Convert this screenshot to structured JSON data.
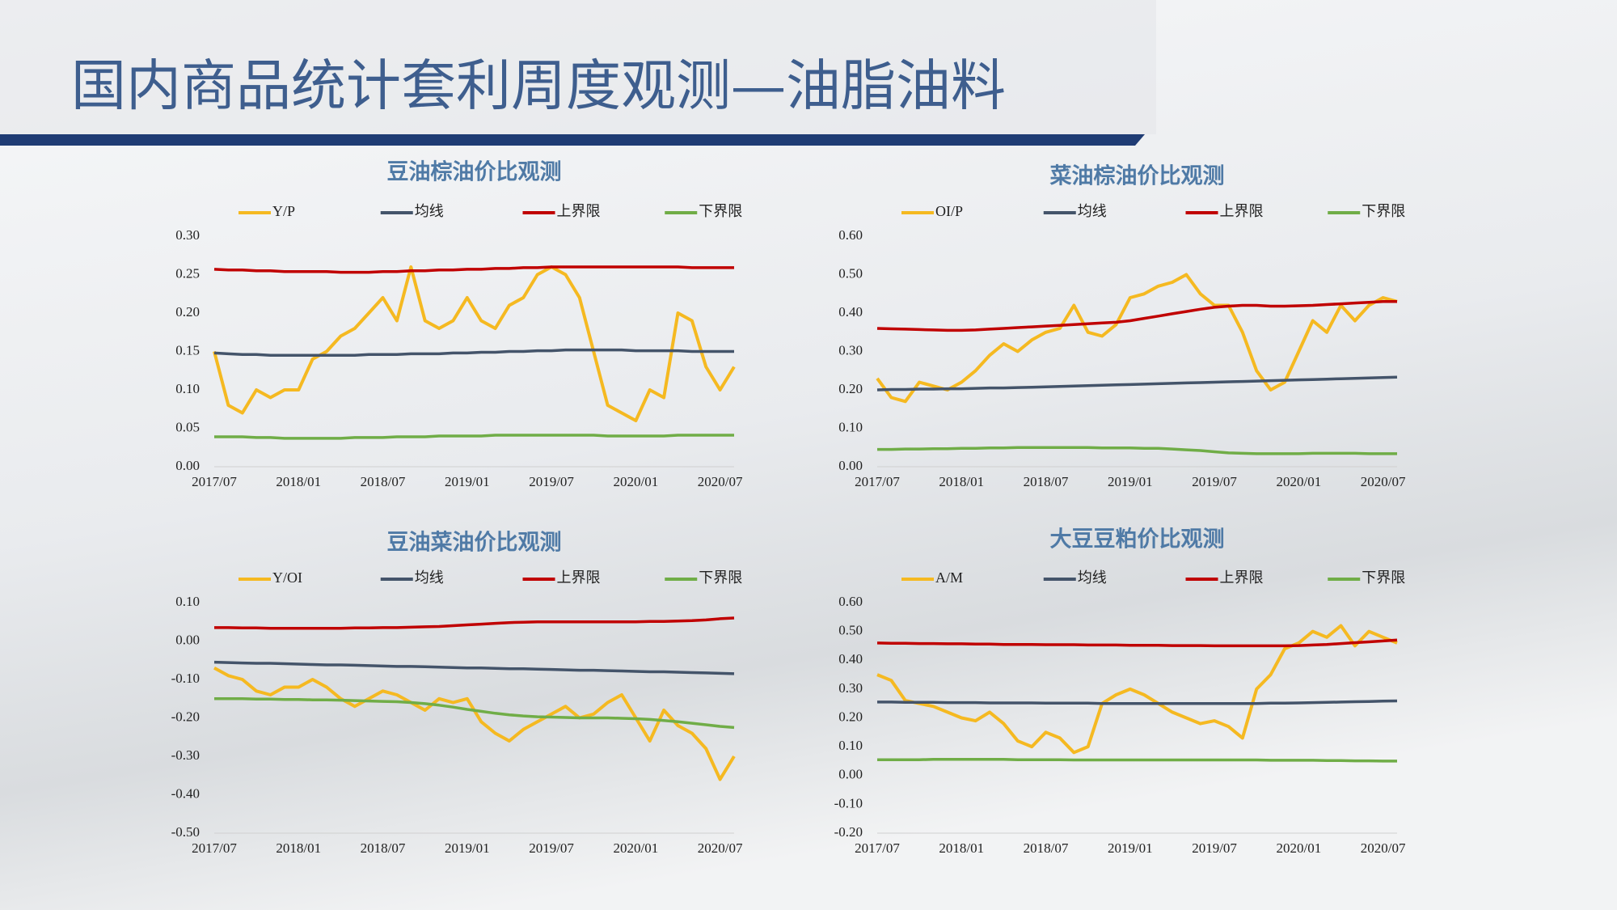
{
  "header": {
    "title": "国内商品统计套利周度观测—油脂油料"
  },
  "chart_data": [
    {
      "type": "line",
      "title": "豆油棕油价比观测",
      "categories": [
        "2017/07",
        null,
        null,
        null,
        null,
        null,
        "2018/01",
        null,
        null,
        null,
        null,
        null,
        "2018/07",
        null,
        null,
        null,
        null,
        null,
        "2019/01",
        null,
        null,
        null,
        null,
        null,
        "2019/07",
        null,
        null,
        null,
        null,
        null,
        "2020/01",
        null,
        null,
        null,
        null,
        null,
        "2020/07",
        null
      ],
      "ylim": [
        0,
        0.3
      ],
      "yticks": [
        {
          "value": 0,
          "label": "0.00"
        },
        {
          "value": 0.05,
          "label": "0.05"
        },
        {
          "value": 0.1,
          "label": "0.10"
        },
        {
          "value": 0.15,
          "label": "0.15"
        },
        {
          "value": 0.2,
          "label": "0.20"
        },
        {
          "value": 0.25,
          "label": "0.25"
        },
        {
          "value": 0.3,
          "label": "0.30"
        }
      ],
      "grid": false,
      "series": [
        {
          "name": "Y/P",
          "color": "#f5b921",
          "values": [
            0.15,
            0.08,
            0.07,
            0.1,
            0.09,
            0.1,
            0.1,
            0.14,
            0.15,
            0.17,
            0.18,
            0.2,
            0.22,
            0.19,
            0.26,
            0.19,
            0.18,
            0.19,
            0.22,
            0.19,
            0.18,
            0.21,
            0.22,
            0.25,
            0.26,
            0.25,
            0.22,
            0.15,
            0.08,
            0.07,
            0.06,
            0.1,
            0.09,
            0.2,
            0.19,
            0.13,
            0.1,
            0.13
          ]
        },
        {
          "name": "均线",
          "color": "#44546a",
          "values": [
            0.148,
            0.147,
            0.146,
            0.146,
            0.145,
            0.145,
            0.145,
            0.145,
            0.145,
            0.145,
            0.145,
            0.146,
            0.146,
            0.146,
            0.147,
            0.147,
            0.147,
            0.148,
            0.148,
            0.149,
            0.149,
            0.15,
            0.15,
            0.151,
            0.151,
            0.152,
            0.152,
            0.152,
            0.152,
            0.152,
            0.151,
            0.151,
            0.151,
            0.151,
            0.15,
            0.15,
            0.15,
            0.15
          ]
        },
        {
          "name": "上界限",
          "color": "#c00000",
          "values": [
            0.257,
            0.256,
            0.256,
            0.255,
            0.255,
            0.254,
            0.254,
            0.254,
            0.254,
            0.253,
            0.253,
            0.253,
            0.254,
            0.254,
            0.255,
            0.255,
            0.256,
            0.256,
            0.257,
            0.257,
            0.258,
            0.258,
            0.259,
            0.259,
            0.26,
            0.26,
            0.26,
            0.26,
            0.26,
            0.26,
            0.26,
            0.26,
            0.26,
            0.26,
            0.259,
            0.259,
            0.259,
            0.259
          ]
        },
        {
          "name": "下界限",
          "color": "#70ad47",
          "values": [
            0.039,
            0.039,
            0.039,
            0.038,
            0.038,
            0.037,
            0.037,
            0.037,
            0.037,
            0.037,
            0.038,
            0.038,
            0.038,
            0.039,
            0.039,
            0.039,
            0.04,
            0.04,
            0.04,
            0.04,
            0.041,
            0.041,
            0.041,
            0.041,
            0.041,
            0.041,
            0.041,
            0.041,
            0.04,
            0.04,
            0.04,
            0.04,
            0.04,
            0.041,
            0.041,
            0.041,
            0.041,
            0.041
          ]
        }
      ]
    },
    {
      "type": "line",
      "title": "菜油棕油价比观测",
      "categories": [
        "2017/07",
        null,
        null,
        null,
        null,
        null,
        "2018/01",
        null,
        null,
        null,
        null,
        null,
        "2018/07",
        null,
        null,
        null,
        null,
        null,
        "2019/01",
        null,
        null,
        null,
        null,
        null,
        "2019/07",
        null,
        null,
        null,
        null,
        null,
        "2020/01",
        null,
        null,
        null,
        null,
        null,
        "2020/07",
        null
      ],
      "ylim": [
        0,
        0.6
      ],
      "yticks": [
        {
          "value": 0,
          "label": "0.00"
        },
        {
          "value": 0.1,
          "label": "0.10"
        },
        {
          "value": 0.2,
          "label": "0.20"
        },
        {
          "value": 0.3,
          "label": "0.30"
        },
        {
          "value": 0.4,
          "label": "0.40"
        },
        {
          "value": 0.5,
          "label": "0.50"
        },
        {
          "value": 0.6,
          "label": "0.60"
        }
      ],
      "grid": false,
      "series": [
        {
          "name": "OI/P",
          "color": "#f5b921",
          "values": [
            0.23,
            0.18,
            0.17,
            0.22,
            0.21,
            0.2,
            0.22,
            0.25,
            0.29,
            0.32,
            0.3,
            0.33,
            0.35,
            0.36,
            0.42,
            0.35,
            0.34,
            0.37,
            0.44,
            0.45,
            0.47,
            0.48,
            0.5,
            0.45,
            0.42,
            0.42,
            0.35,
            0.25,
            0.2,
            0.22,
            0.3,
            0.38,
            0.35,
            0.42,
            0.38,
            0.42,
            0.44,
            0.43
          ]
        },
        {
          "name": "均线",
          "color": "#44546a",
          "values": [
            0.2,
            0.201,
            0.201,
            0.202,
            0.202,
            0.203,
            0.203,
            0.204,
            0.205,
            0.205,
            0.206,
            0.207,
            0.208,
            0.209,
            0.21,
            0.211,
            0.212,
            0.213,
            0.214,
            0.215,
            0.216,
            0.217,
            0.218,
            0.219,
            0.22,
            0.221,
            0.222,
            0.223,
            0.224,
            0.225,
            0.226,
            0.227,
            0.228,
            0.229,
            0.23,
            0.231,
            0.232,
            0.233
          ]
        },
        {
          "name": "上界限",
          "color": "#c00000",
          "values": [
            0.36,
            0.359,
            0.358,
            0.357,
            0.356,
            0.355,
            0.355,
            0.356,
            0.358,
            0.36,
            0.362,
            0.364,
            0.366,
            0.368,
            0.37,
            0.372,
            0.374,
            0.376,
            0.38,
            0.386,
            0.392,
            0.398,
            0.404,
            0.41,
            0.415,
            0.418,
            0.42,
            0.42,
            0.418,
            0.418,
            0.419,
            0.42,
            0.422,
            0.424,
            0.426,
            0.428,
            0.43,
            0.43
          ]
        },
        {
          "name": "下界限",
          "color": "#70ad47",
          "values": [
            0.045,
            0.045,
            0.046,
            0.046,
            0.047,
            0.047,
            0.048,
            0.048,
            0.049,
            0.049,
            0.05,
            0.05,
            0.05,
            0.05,
            0.05,
            0.05,
            0.049,
            0.049,
            0.049,
            0.048,
            0.048,
            0.046,
            0.044,
            0.042,
            0.039,
            0.036,
            0.035,
            0.034,
            0.034,
            0.034,
            0.034,
            0.035,
            0.035,
            0.035,
            0.035,
            0.034,
            0.034,
            0.034
          ]
        }
      ]
    },
    {
      "type": "line",
      "title": "豆油菜油价比观测",
      "categories": [
        "2017/07",
        null,
        null,
        null,
        null,
        null,
        "2018/01",
        null,
        null,
        null,
        null,
        null,
        "2018/07",
        null,
        null,
        null,
        null,
        null,
        "2019/01",
        null,
        null,
        null,
        null,
        null,
        "2019/07",
        null,
        null,
        null,
        null,
        null,
        "2020/01",
        null,
        null,
        null,
        null,
        null,
        "2020/07",
        null
      ],
      "ylim": [
        -0.5,
        0.1
      ],
      "yticks": [
        {
          "value": -0.5,
          "label": "-0.50"
        },
        {
          "value": -0.4,
          "label": "-0.40"
        },
        {
          "value": -0.3,
          "label": "-0.30"
        },
        {
          "value": -0.2,
          "label": "-0.20"
        },
        {
          "value": -0.1,
          "label": "-0.10"
        },
        {
          "value": 0,
          "label": "0.00"
        },
        {
          "value": 0.1,
          "label": "0.10"
        }
      ],
      "grid": false,
      "series": [
        {
          "name": "Y/OI",
          "color": "#f5b921",
          "values": [
            -0.07,
            -0.09,
            -0.1,
            -0.13,
            -0.14,
            -0.12,
            -0.12,
            -0.1,
            -0.12,
            -0.15,
            -0.17,
            -0.15,
            -0.13,
            -0.14,
            -0.16,
            -0.18,
            -0.15,
            -0.16,
            -0.15,
            -0.21,
            -0.24,
            -0.26,
            -0.23,
            -0.21,
            -0.19,
            -0.17,
            -0.2,
            -0.19,
            -0.16,
            -0.14,
            -0.2,
            -0.26,
            -0.18,
            -0.22,
            -0.24,
            -0.28,
            -0.36,
            -0.3
          ]
        },
        {
          "name": "均线",
          "color": "#44546a",
          "values": [
            -0.055,
            -0.056,
            -0.057,
            -0.058,
            -0.058,
            -0.059,
            -0.06,
            -0.061,
            -0.062,
            -0.062,
            -0.063,
            -0.064,
            -0.065,
            -0.066,
            -0.066,
            -0.067,
            -0.068,
            -0.069,
            -0.07,
            -0.07,
            -0.071,
            -0.072,
            -0.072,
            -0.073,
            -0.074,
            -0.075,
            -0.076,
            -0.076,
            -0.077,
            -0.078,
            -0.079,
            -0.08,
            -0.08,
            -0.081,
            -0.082,
            -0.083,
            -0.084,
            -0.085
          ]
        },
        {
          "name": "上界限",
          "color": "#c00000",
          "values": [
            0.035,
            0.035,
            0.034,
            0.034,
            0.033,
            0.033,
            0.033,
            0.033,
            0.033,
            0.033,
            0.034,
            0.034,
            0.035,
            0.035,
            0.036,
            0.037,
            0.038,
            0.04,
            0.042,
            0.044,
            0.046,
            0.048,
            0.049,
            0.05,
            0.05,
            0.05,
            0.05,
            0.05,
            0.05,
            0.05,
            0.05,
            0.051,
            0.051,
            0.052,
            0.053,
            0.055,
            0.058,
            0.06
          ]
        },
        {
          "name": "下界限",
          "color": "#70ad47",
          "values": [
            -0.15,
            -0.15,
            -0.15,
            -0.151,
            -0.151,
            -0.152,
            -0.152,
            -0.153,
            -0.153,
            -0.154,
            -0.155,
            -0.156,
            -0.157,
            -0.158,
            -0.16,
            -0.163,
            -0.167,
            -0.172,
            -0.178,
            -0.183,
            -0.188,
            -0.192,
            -0.195,
            -0.197,
            -0.198,
            -0.199,
            -0.2,
            -0.2,
            -0.2,
            -0.201,
            -0.202,
            -0.204,
            -0.207,
            -0.21,
            -0.214,
            -0.218,
            -0.222,
            -0.225
          ]
        }
      ]
    },
    {
      "type": "line",
      "title": "大豆豆粕价比观测",
      "categories": [
        "2017/07",
        null,
        null,
        null,
        null,
        null,
        "2018/01",
        null,
        null,
        null,
        null,
        null,
        "2018/07",
        null,
        null,
        null,
        null,
        null,
        "2019/01",
        null,
        null,
        null,
        null,
        null,
        "2019/07",
        null,
        null,
        null,
        null,
        null,
        "2020/01",
        null,
        null,
        null,
        null,
        null,
        "2020/07",
        null
      ],
      "ylim": [
        -0.2,
        0.6
      ],
      "yticks": [
        {
          "value": -0.2,
          "label": "-0.20"
        },
        {
          "value": -0.1,
          "label": "-0.10"
        },
        {
          "value": 0,
          "label": "0.00"
        },
        {
          "value": 0.1,
          "label": "0.10"
        },
        {
          "value": 0.2,
          "label": "0.20"
        },
        {
          "value": 0.3,
          "label": "0.30"
        },
        {
          "value": 0.4,
          "label": "0.40"
        },
        {
          "value": 0.5,
          "label": "0.50"
        },
        {
          "value": 0.6,
          "label": "0.60"
        }
      ],
      "grid": false,
      "series": [
        {
          "name": "A/M",
          "color": "#f5b921",
          "values": [
            0.35,
            0.33,
            0.26,
            0.25,
            0.24,
            0.22,
            0.2,
            0.19,
            0.22,
            0.18,
            0.12,
            0.1,
            0.15,
            0.13,
            0.08,
            0.1,
            0.25,
            0.28,
            0.3,
            0.28,
            0.25,
            0.22,
            0.2,
            0.18,
            0.19,
            0.17,
            0.13,
            0.3,
            0.35,
            0.44,
            0.46,
            0.5,
            0.48,
            0.52,
            0.45,
            0.5,
            0.48,
            0.46
          ]
        },
        {
          "name": "均线",
          "color": "#44546a",
          "values": [
            0.255,
            0.255,
            0.254,
            0.254,
            0.254,
            0.253,
            0.253,
            0.253,
            0.252,
            0.252,
            0.252,
            0.252,
            0.251,
            0.251,
            0.251,
            0.251,
            0.25,
            0.25,
            0.25,
            0.25,
            0.25,
            0.25,
            0.25,
            0.25,
            0.25,
            0.25,
            0.25,
            0.25,
            0.251,
            0.251,
            0.252,
            0.253,
            0.254,
            0.255,
            0.256,
            0.257,
            0.258,
            0.259
          ]
        },
        {
          "name": "上界限",
          "color": "#c00000",
          "values": [
            0.46,
            0.459,
            0.459,
            0.458,
            0.458,
            0.457,
            0.457,
            0.456,
            0.456,
            0.455,
            0.455,
            0.455,
            0.454,
            0.454,
            0.454,
            0.453,
            0.453,
            0.453,
            0.452,
            0.452,
            0.452,
            0.451,
            0.451,
            0.451,
            0.45,
            0.45,
            0.45,
            0.45,
            0.45,
            0.45,
            0.451,
            0.453,
            0.455,
            0.458,
            0.461,
            0.464,
            0.467,
            0.47
          ]
        },
        {
          "name": "下界限",
          "color": "#70ad47",
          "values": [
            0.055,
            0.055,
            0.055,
            0.055,
            0.056,
            0.056,
            0.056,
            0.056,
            0.056,
            0.056,
            0.055,
            0.055,
            0.055,
            0.055,
            0.054,
            0.054,
            0.054,
            0.054,
            0.054,
            0.054,
            0.054,
            0.054,
            0.054,
            0.054,
            0.054,
            0.054,
            0.054,
            0.054,
            0.053,
            0.053,
            0.053,
            0.053,
            0.052,
            0.052,
            0.051,
            0.051,
            0.05,
            0.05
          ]
        }
      ]
    }
  ]
}
